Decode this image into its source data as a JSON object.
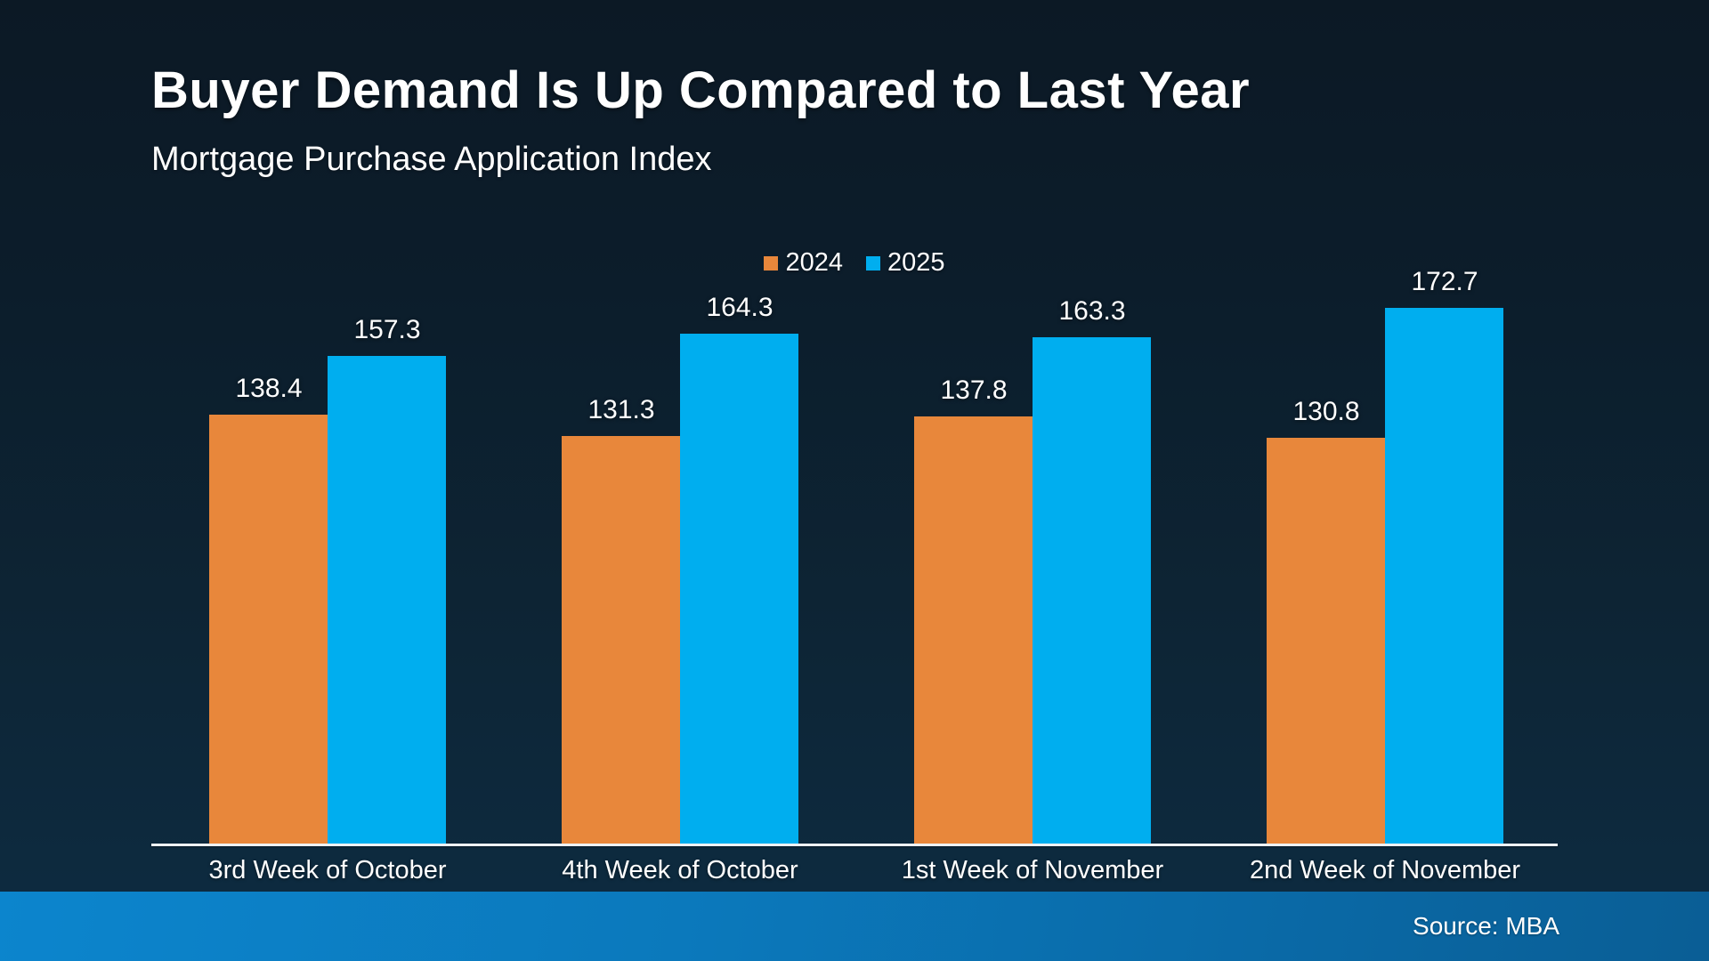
{
  "header": {
    "title": "Buyer Demand Is Up Compared to Last Year",
    "subtitle": "Mortgage Purchase Application Index"
  },
  "footer": {
    "source": "Source: MBA"
  },
  "colors": {
    "background_top": "#0c1925",
    "background_bottom": "#0d2c42",
    "axis_line": "#eef2f5",
    "text": "#ffffff",
    "footer_gradient_left": "#0c85cd",
    "footer_gradient_right": "#0a5e95"
  },
  "chart_data": {
    "type": "bar",
    "title": "Buyer Demand Is Up Compared to Last Year",
    "subtitle": "Mortgage Purchase Application Index",
    "categories": [
      "3rd Week of October",
      "4th Week of October",
      "1st Week of November",
      "2nd Week of November"
    ],
    "series": [
      {
        "name": "2024",
        "color": "#e8873b",
        "values": [
          138.4,
          131.3,
          137.8,
          130.8
        ]
      },
      {
        "name": "2025",
        "color": "#00aeef",
        "values": [
          157.3,
          164.3,
          163.3,
          172.7
        ]
      }
    ],
    "ylim": [
      0,
      180
    ],
    "grid": false,
    "value_labels": true,
    "legend_position": "top-center",
    "xlabel": "",
    "ylabel": ""
  }
}
